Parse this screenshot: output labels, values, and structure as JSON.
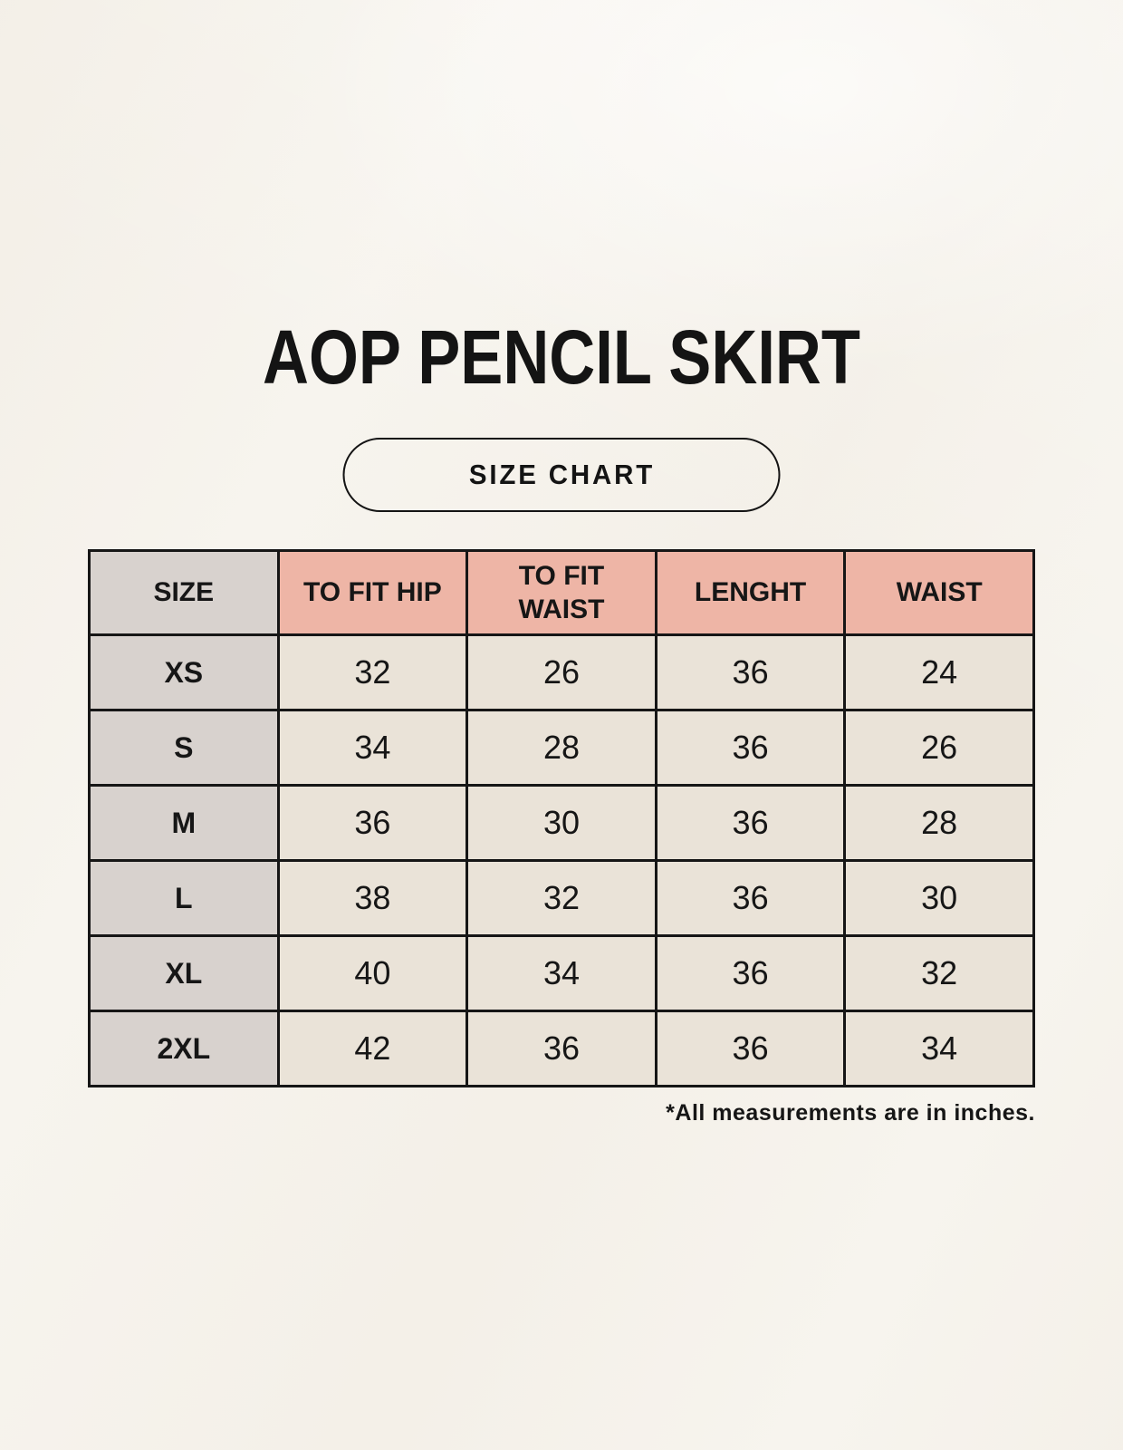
{
  "page": {
    "title": "AOP PENCIL SKIRT",
    "badge_label": "SIZE CHART",
    "footnote": "*All measurements are in inches."
  },
  "table": {
    "headers": [
      "SIZE",
      "TO FIT HIP",
      "TO FIT WAIST",
      "LENGHT",
      "WAIST"
    ],
    "rows": [
      [
        "XS",
        "32",
        "26",
        "36",
        "24"
      ],
      [
        "S",
        "34",
        "28",
        "36",
        "26"
      ],
      [
        "M",
        "36",
        "30",
        "36",
        "28"
      ],
      [
        "L",
        "38",
        "32",
        "36",
        "30"
      ],
      [
        "XL",
        "40",
        "34",
        "36",
        "32"
      ],
      [
        "2XL",
        "42",
        "36",
        "36",
        "34"
      ]
    ],
    "units": "inches"
  },
  "colors": {
    "background": "#f7f4ee",
    "header_accent": "#eeb5a6",
    "size_column": "#d8d2ce",
    "data_cell": "#eae3d8",
    "border": "#161616",
    "text": "#141414"
  }
}
